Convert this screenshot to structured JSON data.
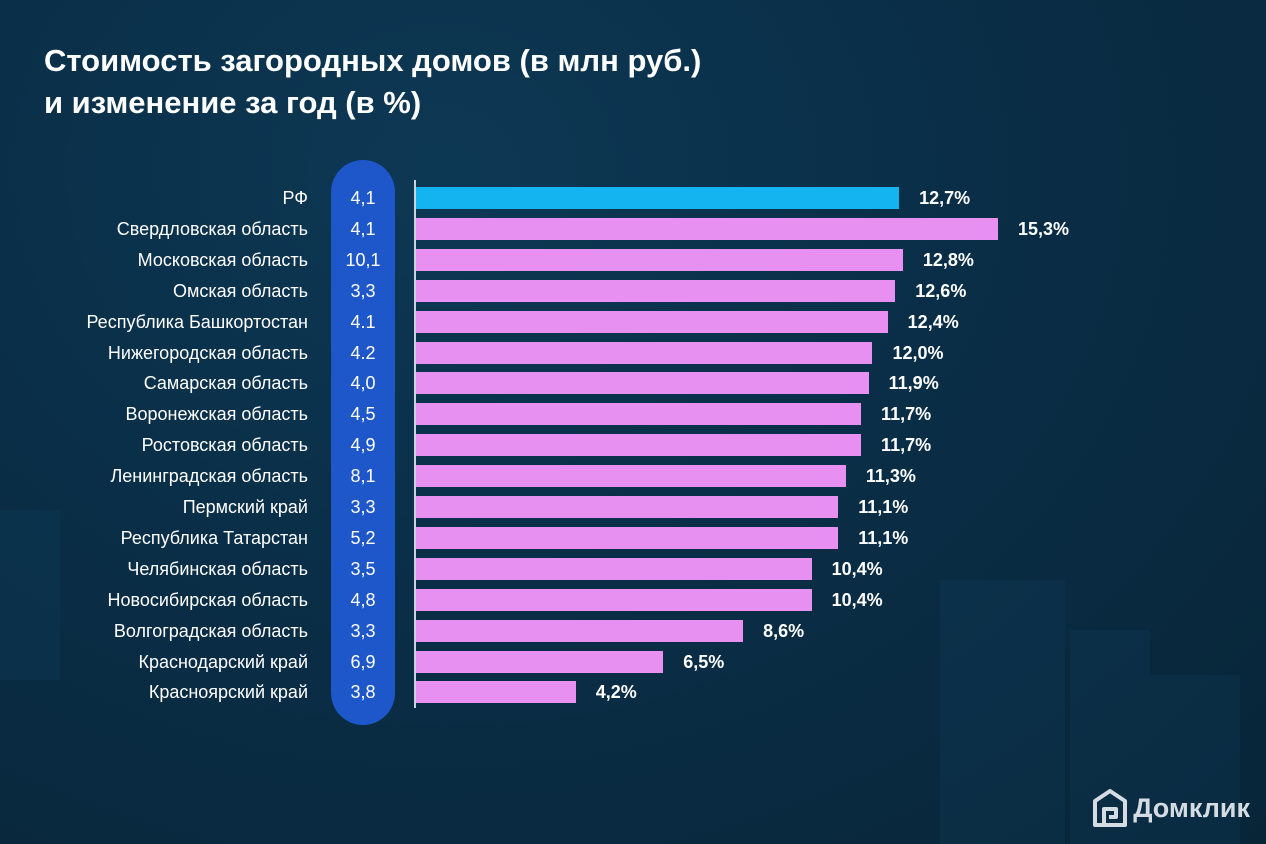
{
  "chart_title": {
    "line1": "Стоимость загородных домов (в млн руб.)",
    "line2": "и изменение за год (в %)"
  },
  "brand": {
    "name": "Домклик",
    "icon": "house-logo-icon"
  },
  "colors": {
    "highlight_bar": "#14b4f0",
    "bar": "#e88ff2",
    "value_pill": "#1d57c9",
    "background": "#0a2e47"
  },
  "chart_data": {
    "type": "bar",
    "orientation": "horizontal",
    "title": "Стоимость загородных домов (в млн руб.) и изменение за год (в %)",
    "categories": [
      "РФ",
      "Свердловская область",
      "Московская область",
      "Омская область",
      "Республика Башкортостан",
      "Нижегородская область",
      "Самарская область",
      "Воронежская область",
      "Ростовская область",
      "Ленинградская область",
      "Пермский край",
      "Республика Татарстан",
      "Челябинская область",
      "Новосибирская область",
      "Волгоградская область",
      "Краснодарский край",
      "Красноярский край"
    ],
    "price_labels": [
      "4,1",
      "4,1",
      "10,1",
      "3,3",
      "4.1",
      "4.2",
      "4,0",
      "4,5",
      "4,9",
      "8,1",
      "3,3",
      "5,2",
      "3,5",
      "4,8",
      "3,3",
      "6,9",
      "3,8"
    ],
    "change_labels": [
      "12,7%",
      "15,3%",
      "12,8%",
      "12,6%",
      "12,4%",
      "12,0%",
      "11,9%",
      "11,7%",
      "11,7%",
      "11,3%",
      "11,1%",
      "11,1%",
      "10,4%",
      "10,4%",
      "8,6%",
      "6,5%",
      "4,2%"
    ],
    "series": [
      {
        "values": [
          4.1,
          4.1,
          10.1,
          3.3,
          4.1,
          4.2,
          4.0,
          4.5,
          4.9,
          8.1,
          3.3,
          5.2,
          3.5,
          4.8,
          3.3,
          6.9,
          3.8
        ]
      },
      {
        "values": [
          12.7,
          15.3,
          12.8,
          12.6,
          12.4,
          12.0,
          11.9,
          11.7,
          11.7,
          11.3,
          11.1,
          11.1,
          10.4,
          10.4,
          8.6,
          6.5,
          4.2
        ]
      }
    ],
    "highlighted_category": "РФ",
    "xlim": [
      0,
      15.3
    ]
  }
}
